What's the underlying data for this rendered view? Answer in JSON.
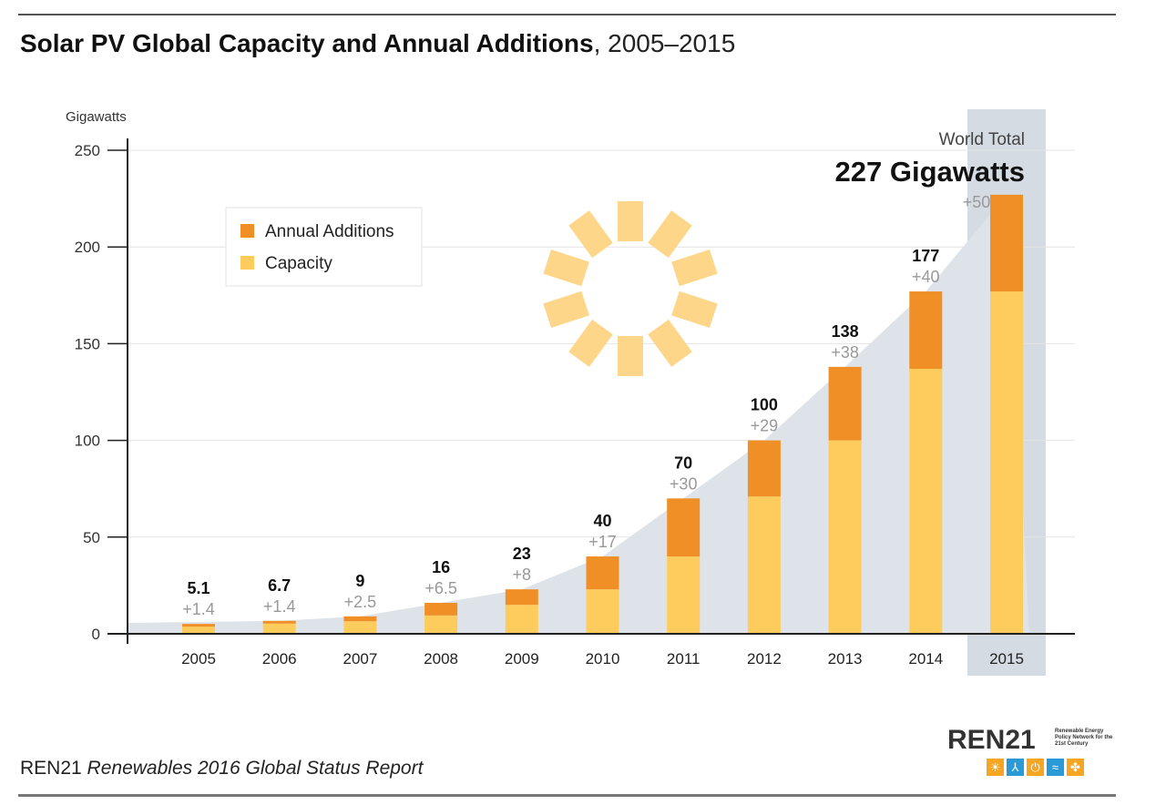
{
  "title": {
    "bold": "Solar PV Global Capacity and Annual Additions",
    "light": ", 2005–2015"
  },
  "source": {
    "org": "REN21",
    "publication": "Renewables 2016 Global Status Report"
  },
  "logo": {
    "wordmark": "REN21",
    "tagline": "Renewable Energy Policy Network for the 21st Century"
  },
  "colors": {
    "capacity": "#FDCC5C",
    "additions": "#EF8F25",
    "trend_area": "#DDE3E8",
    "highlight_column": "#D4DBE2",
    "sun": "#FDD68A",
    "logo_yellow": "#F6A623",
    "logo_blue": "#2A9AD6"
  },
  "annotation": {
    "line1": "World Total",
    "line2": "227 Gigawatts"
  },
  "chart_data": {
    "type": "bar",
    "stacked": true,
    "ylabel": "Gigawatts",
    "ylim": [
      0,
      250
    ],
    "yticks": [
      0,
      50,
      100,
      150,
      200,
      250
    ],
    "grid": true,
    "legend_position": "top-left",
    "categories": [
      "2005",
      "2006",
      "2007",
      "2008",
      "2009",
      "2010",
      "2011",
      "2012",
      "2013",
      "2014",
      "2015"
    ],
    "series": [
      {
        "name": "Capacity",
        "values": [
          3.7,
          5.3,
          6.5,
          9.5,
          15,
          23,
          40,
          71,
          100,
          137,
          177
        ]
      },
      {
        "name": "Annual Additions",
        "values": [
          1.4,
          1.4,
          2.5,
          6.5,
          8,
          17,
          30,
          29,
          38,
          40,
          50
        ]
      }
    ],
    "total_labels": [
      "5.1",
      "6.7",
      "9",
      "16",
      "23",
      "40",
      "70",
      "100",
      "138",
      "177",
      ""
    ],
    "addition_labels": [
      "+1.4",
      "+1.4",
      "+2.5",
      "+6.5",
      "+8",
      "+17",
      "+30",
      "+29",
      "+38",
      "+40",
      "+50"
    ],
    "highlight_category": "2015"
  }
}
